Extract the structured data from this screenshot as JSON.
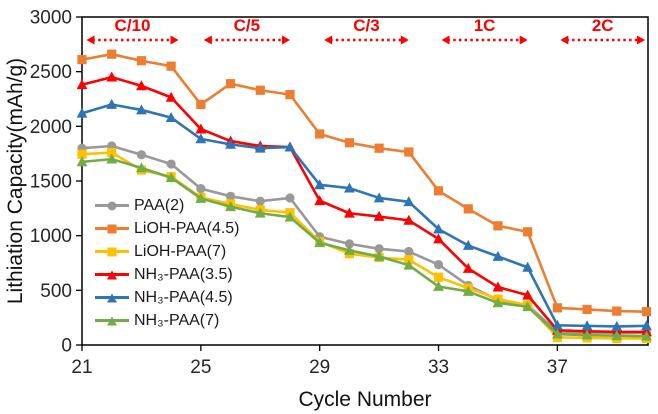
{
  "chart_data": {
    "type": "line",
    "title": "",
    "xlabel": "Cycle Number",
    "ylabel": "Lithiation Capacity(mAh/g)",
    "xlim": [
      21,
      40.05
    ],
    "ylim": [
      0,
      3000
    ],
    "x_ticks": [
      21,
      25,
      29,
      33,
      37
    ],
    "y_ticks": [
      0,
      500,
      1000,
      1500,
      2000,
      2500,
      3000
    ],
    "grid": false,
    "legend_position": "inside-left",
    "x": [
      21,
      22,
      23,
      24,
      25,
      26,
      27,
      28,
      29,
      30,
      31,
      32,
      33,
      34,
      35,
      36,
      37,
      38,
      39,
      40
    ],
    "series": [
      {
        "name": "PAA(2)",
        "color": "#999999",
        "marker": "circle",
        "values": [
          1800,
          1820,
          1740,
          1655,
          1430,
          1360,
          1315,
          1345,
          990,
          925,
          880,
          855,
          735,
          545,
          410,
          365,
          120,
          115,
          110,
          110
        ]
      },
      {
        "name": "LiOH-PAA(4.5)",
        "color": "#ED7D31",
        "marker": "square",
        "values": [
          2610,
          2660,
          2600,
          2550,
          2200,
          2390,
          2330,
          2290,
          1930,
          1850,
          1800,
          1765,
          1410,
          1245,
          1090,
          1035,
          340,
          325,
          310,
          305
        ]
      },
      {
        "name": "LiOH-PAA(7)",
        "color": "#FFC000",
        "marker": "square",
        "values": [
          1745,
          1760,
          1600,
          1540,
          1350,
          1290,
          1235,
          1210,
          945,
          835,
          800,
          780,
          620,
          520,
          420,
          365,
          70,
          65,
          60,
          60
        ]
      },
      {
        "name": "NH₃-PAA(3.5)",
        "color": "#FF0000",
        "marker": "triangle",
        "values": [
          2380,
          2450,
          2370,
          2265,
          1975,
          1865,
          1820,
          1810,
          1320,
          1205,
          1175,
          1140,
          970,
          700,
          530,
          455,
          135,
          125,
          120,
          120
        ]
      },
      {
        "name": "NH₃-PAA(4.5)",
        "color": "#2E75B6",
        "marker": "triangle",
        "values": [
          2120,
          2200,
          2150,
          2080,
          1885,
          1835,
          1800,
          1810,
          1465,
          1435,
          1345,
          1310,
          1060,
          910,
          810,
          710,
          180,
          175,
          170,
          175
        ]
      },
      {
        "name": "NH₃-PAA(7)",
        "color": "#70AD47",
        "marker": "triangle",
        "values": [
          1675,
          1700,
          1620,
          1530,
          1340,
          1265,
          1205,
          1170,
          935,
          865,
          810,
          730,
          535,
          490,
          385,
          350,
          100,
          90,
          85,
          80
        ]
      }
    ],
    "rate_annotations": {
      "color": "#FF0000",
      "items": [
        {
          "label": "C/10",
          "x_start": 21.15,
          "x_end": 24.25
        },
        {
          "label": "C/5",
          "x_start": 25.1,
          "x_end": 28.0
        },
        {
          "label": "C/3",
          "x_start": 29.15,
          "x_end": 32.0
        },
        {
          "label": "1C",
          "x_start": 33.1,
          "x_end": 36.0
        },
        {
          "label": "2C",
          "x_start": 37.1,
          "x_end": 39.95
        }
      ]
    }
  }
}
